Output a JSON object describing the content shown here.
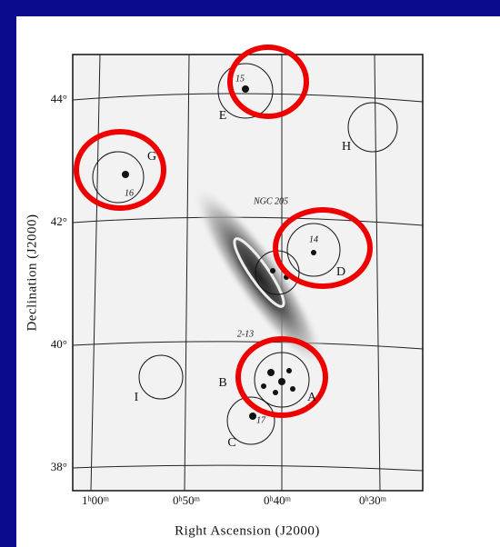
{
  "figure": {
    "x_axis_title": "Right Ascension (J2000)",
    "y_axis_title": "Declination (J2000)",
    "ra_ticks": [
      "1ʰ00ᵐ",
      "0ʰ50ᵐ",
      "0ʰ40ᵐ",
      "0ʰ30ᵐ"
    ],
    "dec_ticks": [
      "44°",
      "42°",
      "40°",
      "38°"
    ],
    "fields": [
      "E",
      "G",
      "H",
      "D",
      "B",
      "A",
      "C",
      "I"
    ],
    "annotations": [
      "15",
      "16",
      "14",
      "NGC 205",
      "2-13",
      "17"
    ]
  }
}
